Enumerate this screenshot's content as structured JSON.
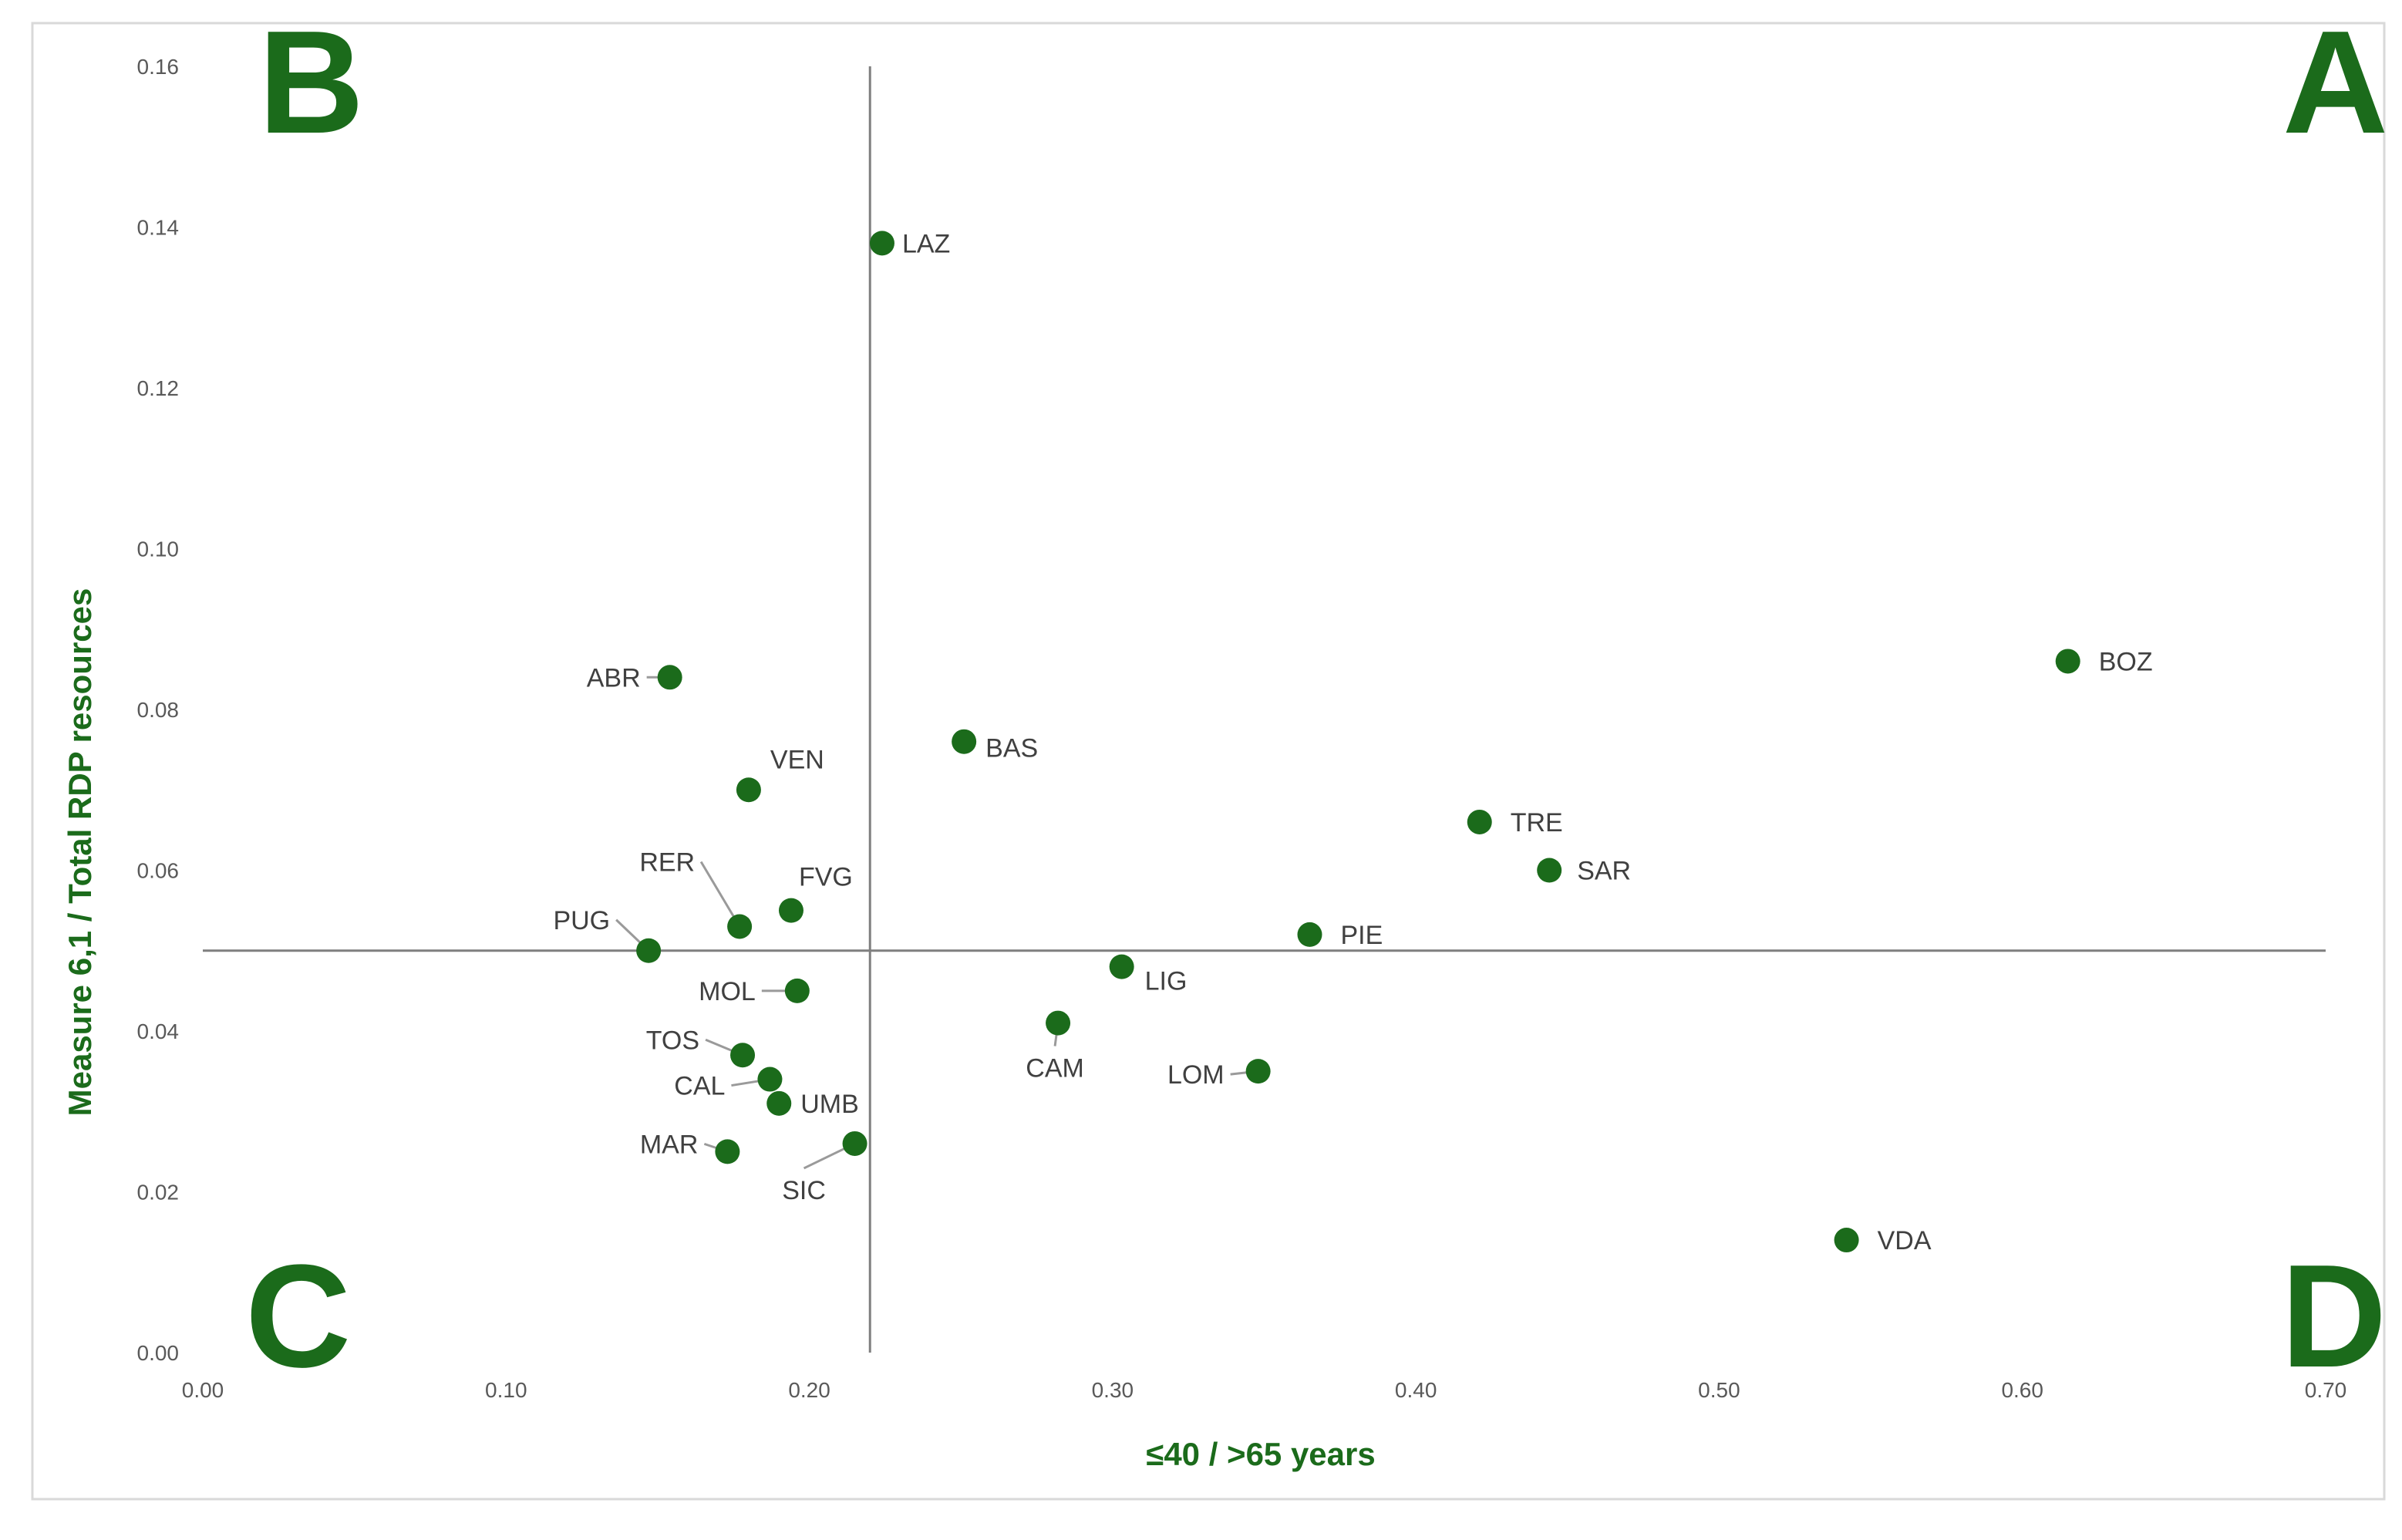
{
  "chart_data": {
    "type": "scatter",
    "xlabel": "≤40 / >65 years",
    "ylabel": "Measure 6,1 / Total RDP resources",
    "xlim": [
      0,
      0.7
    ],
    "ylim": [
      0,
      0.16
    ],
    "x_ticks": [
      "0.00",
      "0.10",
      "0.20",
      "0.30",
      "0.40",
      "0.50",
      "0.60",
      "0.70"
    ],
    "y_ticks": [
      "0.00",
      "0.02",
      "0.04",
      "0.06",
      "0.08",
      "0.10",
      "0.12",
      "0.14",
      "0.16"
    ],
    "grid": false,
    "reference_lines": {
      "x": 0.22,
      "y": 0.05
    },
    "quadrant_labels": {
      "top_left": "B",
      "top_right": "A",
      "bottom_left": "C",
      "bottom_right": "D"
    },
    "marker_color": "#1b6b1b",
    "points": [
      {
        "label": "LAZ",
        "x": 0.224,
        "y": 0.138
      },
      {
        "label": "BOZ",
        "x": 0.615,
        "y": 0.086
      },
      {
        "label": "ABR",
        "x": 0.154,
        "y": 0.084
      },
      {
        "label": "BAS",
        "x": 0.251,
        "y": 0.076
      },
      {
        "label": "VEN",
        "x": 0.18,
        "y": 0.07
      },
      {
        "label": "TRE",
        "x": 0.421,
        "y": 0.066
      },
      {
        "label": "SAR",
        "x": 0.444,
        "y": 0.06
      },
      {
        "label": "FVG",
        "x": 0.194,
        "y": 0.055
      },
      {
        "label": "RER",
        "x": 0.177,
        "y": 0.053
      },
      {
        "label": "PIE",
        "x": 0.365,
        "y": 0.052
      },
      {
        "label": "PUG",
        "x": 0.147,
        "y": 0.05
      },
      {
        "label": "LIG",
        "x": 0.303,
        "y": 0.048
      },
      {
        "label": "MOL",
        "x": 0.196,
        "y": 0.045
      },
      {
        "label": "CAM",
        "x": 0.282,
        "y": 0.041
      },
      {
        "label": "TOS",
        "x": 0.178,
        "y": 0.037
      },
      {
        "label": "LOM",
        "x": 0.348,
        "y": 0.035
      },
      {
        "label": "CAL",
        "x": 0.187,
        "y": 0.034
      },
      {
        "label": "UMB",
        "x": 0.19,
        "y": 0.031
      },
      {
        "label": "SIC",
        "x": 0.215,
        "y": 0.026
      },
      {
        "label": "MAR",
        "x": 0.173,
        "y": 0.025
      },
      {
        "label": "VDA",
        "x": 0.542,
        "y": 0.014
      }
    ]
  }
}
